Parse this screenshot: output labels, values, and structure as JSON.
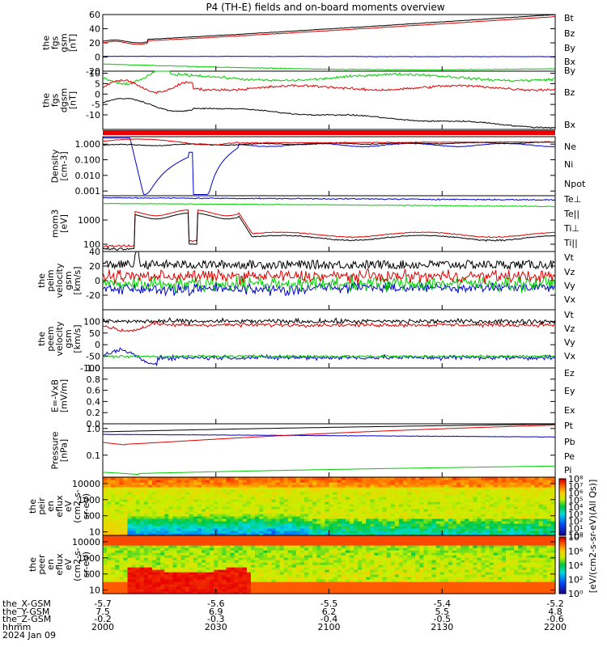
{
  "title": "P4 (TH-E) fields and on-board moments overview",
  "colors": {
    "black": "#000000",
    "red": "#dd0000",
    "green": "#00cc00",
    "blue": "#0000cc"
  },
  "chart_data": [
    {
      "id": "fgs_gsm",
      "type": "line",
      "ylabel": [
        "the",
        "fgs",
        "gsm",
        "[nT]"
      ],
      "ylim": [
        -20,
        60
      ],
      "yticks": [
        "60",
        "40",
        "20",
        "0",
        "-20"
      ],
      "ytick_values": [
        60,
        40,
        20,
        0,
        -20
      ],
      "series": [
        {
          "name": "Bt",
          "color": "black",
          "start": 22,
          "end": 60
        },
        {
          "name": "Bz",
          "color": "red",
          "start": 20,
          "end": 57
        },
        {
          "name": "By",
          "color": "green",
          "start": -10,
          "end": -17
        },
        {
          "name": "Bx",
          "color": "blue",
          "start": 1,
          "end": 0
        }
      ],
      "legend": [
        "Bt",
        "Bz",
        "By",
        "Bx"
      ]
    },
    {
      "id": "fgs_dgsm",
      "type": "line",
      "ylabel": [
        "the",
        "fgs",
        "dgsm",
        "[nT]"
      ],
      "ylim": [
        -17,
        11
      ],
      "yticks": [
        "10",
        "5",
        "0",
        "-5",
        "-10"
      ],
      "ytick_values": [
        10,
        5,
        0,
        -5,
        -10
      ],
      "series": [
        {
          "name": "By",
          "color": "green",
          "start": 1,
          "end": 9
        },
        {
          "name": "Bz",
          "color": "red",
          "start": 2,
          "end": 3
        },
        {
          "name": "Bx",
          "color": "black",
          "start": -5,
          "end": -16
        }
      ],
      "legend": [
        "By",
        "Bz",
        "Bx"
      ]
    },
    {
      "id": "density",
      "type": "line",
      "ylabel": [
        "Density",
        "[cm-3]"
      ],
      "log": true,
      "ylim": [
        0.0005,
        3
      ],
      "yticks": [
        "1.000",
        "0.100",
        "0.010",
        "0.001"
      ],
      "ytick_values": [
        1,
        0.1,
        0.01,
        0.001
      ],
      "series": [
        {
          "name": "Ne",
          "color": "red"
        },
        {
          "name": "Ni",
          "color": "black"
        },
        {
          "name": "Npot",
          "color": "blue"
        }
      ],
      "legend": [
        "Ne",
        "Ni",
        "Npot"
      ]
    },
    {
      "id": "temperature",
      "type": "line",
      "ylabel": [
        "mom3",
        "[eV]"
      ],
      "log": true,
      "ylim": [
        50,
        10000
      ],
      "yticks": [
        "1000",
        "100"
      ],
      "ytick_values": [
        1000,
        100
      ],
      "series": [
        {
          "name": "Te⊥",
          "color": "blue"
        },
        {
          "name": "Te||",
          "color": "black"
        },
        {
          "name": "Ti⊥",
          "color": "red"
        },
        {
          "name": "Ti||",
          "color": "green"
        }
      ],
      "legend": [
        "Te⊥",
        "Te||",
        "Ti⊥",
        "Ti||"
      ]
    },
    {
      "id": "peim_velocity",
      "type": "line",
      "ylabel": [
        "the",
        "peim",
        "velocity",
        "gsm",
        "[km/s]"
      ],
      "ylim": [
        -40,
        40
      ],
      "yticks": [
        "40",
        "20",
        "0",
        "-20"
      ],
      "ytick_values": [
        40,
        20,
        0,
        -20
      ],
      "series": [
        {
          "name": "Vt",
          "color": "black"
        },
        {
          "name": "Vz",
          "color": "red"
        },
        {
          "name": "Vy",
          "color": "green"
        },
        {
          "name": "Vx",
          "color": "blue"
        }
      ],
      "legend": [
        "Vt",
        "Vz",
        "Vy",
        "Vx"
      ]
    },
    {
      "id": "peem_velocity",
      "type": "line",
      "ylabel": [
        "the",
        "peem",
        "velocity",
        "gsm",
        "[km/s]"
      ],
      "ylim": [
        -100,
        150
      ],
      "yticks": [
        "100",
        "50",
        "0",
        "-50",
        "-100"
      ],
      "ytick_values": [
        100,
        50,
        0,
        -50,
        -100
      ],
      "series": [
        {
          "name": "Vt",
          "color": "black"
        },
        {
          "name": "Vz",
          "color": "red"
        },
        {
          "name": "Vy",
          "color": "green"
        },
        {
          "name": "Vx",
          "color": "blue"
        }
      ],
      "legend": [
        "Vt",
        "Vz",
        "Vy",
        "Vx"
      ]
    },
    {
      "id": "efield",
      "type": "line",
      "ylabel": [
        "E=-VxB",
        "[mV/m]"
      ],
      "ylim": [
        0,
        1
      ],
      "yticks": [
        "1.0",
        "0.8",
        "0.6",
        "0.4",
        "0.2",
        "0.0"
      ],
      "ytick_values": [
        1,
        0.8,
        0.6,
        0.4,
        0.2,
        0
      ],
      "series": [],
      "legend": [
        "Ez",
        "Ey",
        "Ex"
      ]
    },
    {
      "id": "pressure",
      "type": "line",
      "ylabel": [
        "Pressure",
        "[nPa]"
      ],
      "log": true,
      "ylim": [
        0.015,
        1.5
      ],
      "yticks": [
        "1.0",
        "0.1"
      ],
      "ytick_values": [
        1,
        0.1
      ],
      "series": [
        {
          "name": "Pt",
          "color": "black"
        },
        {
          "name": "Pb",
          "color": "red"
        },
        {
          "name": "Pe",
          "color": "green"
        },
        {
          "name": "Pi",
          "color": "blue"
        }
      ],
      "legend": [
        "Pt",
        "Pb",
        "Pe",
        "Pi"
      ]
    },
    {
      "id": "peir_spec",
      "type": "heatmap",
      "ylabel": [
        "the",
        "peir",
        "en",
        "eflux",
        "eV",
        "(cm2-s-",
        "sr-eV)"
      ],
      "log": true,
      "ylim": [
        6,
        25000
      ],
      "yticks": [
        "10000",
        "1000",
        "100",
        "10"
      ],
      "ytick_values": [
        10000,
        1000,
        100,
        10
      ]
    },
    {
      "id": "peer_spec",
      "type": "heatmap",
      "ylabel": [
        "the",
        "peer",
        "en",
        "eflux",
        "eV",
        "(cm2-s-",
        "sr-eV)"
      ],
      "log": true,
      "ylim": [
        6,
        25000
      ],
      "yticks": [
        "10000",
        "1000",
        "100",
        "10"
      ],
      "ytick_values": [
        10000,
        1000,
        100,
        10
      ]
    }
  ],
  "colorbar": {
    "label": "[eV/(cm2-s-sr-eV)(All Qs)]",
    "ticks_top": [
      "10⁸",
      "10⁷",
      "10⁶",
      "10⁵",
      "10⁴",
      "10³",
      "10²",
      "10¹",
      "10⁰"
    ],
    "ticks_bottom": [
      "10⁸",
      "10⁶",
      "10⁴",
      "10²",
      "10⁰"
    ]
  },
  "time_axis": {
    "row_labels": [
      "the_X-GSM",
      "the_Y-GSM",
      "the_Z-GSM",
      "hhmm",
      "2024 Jan 09"
    ],
    "columns": [
      {
        "x": "-5.7",
        "y": "7.5",
        "z": "-0.2",
        "hhmm": "2000"
      },
      {
        "x": "-5.6",
        "y": "6.9",
        "z": "-0.3",
        "hhmm": "2030"
      },
      {
        "x": "-5.5",
        "y": "6.2",
        "z": "-0.4",
        "hhmm": "2100"
      },
      {
        "x": "-5.4",
        "y": "5.5",
        "z": "-0.5",
        "hhmm": "2130"
      },
      {
        "x": "-5.2",
        "y": "4.8",
        "z": "-0.6",
        "hhmm": "2200"
      }
    ]
  }
}
